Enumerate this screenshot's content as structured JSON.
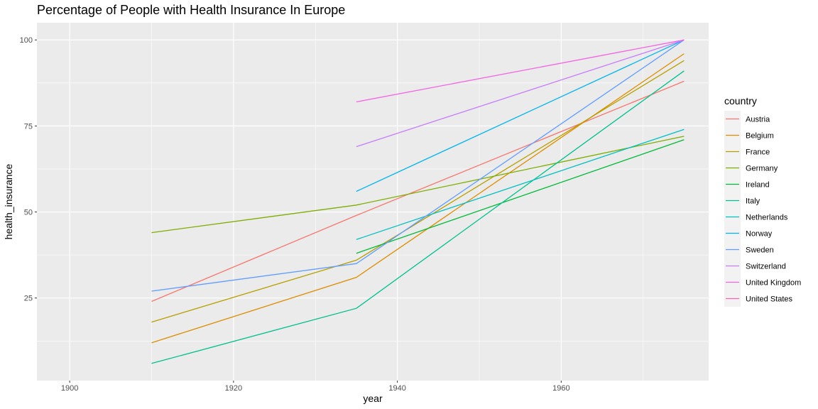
{
  "chart_data": {
    "type": "line",
    "title": "Percentage of People with Health Insurance In Europe",
    "xlabel": "year",
    "ylabel": "health_insurance",
    "xlim": [
      1896,
      1978
    ],
    "ylim": [
      1,
      105
    ],
    "x_ticks": [
      1900,
      1920,
      1940,
      1960
    ],
    "y_ticks": [
      25,
      50,
      75,
      100
    ],
    "grid": true,
    "legend": {
      "title": "country",
      "position": "right"
    },
    "series": [
      {
        "name": "Austria",
        "color": "#F8766D",
        "x": [
          1910,
          1935,
          1975
        ],
        "y": [
          24,
          49,
          88
        ]
      },
      {
        "name": "Belgium",
        "color": "#DE8C00",
        "x": [
          1910,
          1935,
          1975
        ],
        "y": [
          12,
          31,
          96
        ]
      },
      {
        "name": "France",
        "color": "#B79F00",
        "x": [
          1910,
          1935,
          1975
        ],
        "y": [
          18,
          36,
          94
        ]
      },
      {
        "name": "Germany",
        "color": "#7CAE00",
        "x": [
          1910,
          1935,
          1975
        ],
        "y": [
          44,
          52,
          72
        ]
      },
      {
        "name": "Ireland",
        "color": "#00BA38",
        "x": [
          1935,
          1975
        ],
        "y": [
          38,
          71
        ]
      },
      {
        "name": "Italy",
        "color": "#00C08B",
        "x": [
          1910,
          1935,
          1975
        ],
        "y": [
          6,
          22,
          91
        ]
      },
      {
        "name": "Netherlands",
        "color": "#00BFC4",
        "x": [
          1935,
          1975
        ],
        "y": [
          42,
          74
        ]
      },
      {
        "name": "Norway",
        "color": "#00B4F0",
        "x": [
          1935,
          1975
        ],
        "y": [
          56,
          100
        ]
      },
      {
        "name": "Sweden",
        "color": "#619CFF",
        "x": [
          1910,
          1935,
          1975
        ],
        "y": [
          27,
          35,
          100
        ]
      },
      {
        "name": "Switzerland",
        "color": "#C77CFF",
        "x": [
          1935,
          1975
        ],
        "y": [
          69,
          100
        ]
      },
      {
        "name": "United Kingdom",
        "color": "#F564E3",
        "x": [
          1935,
          1975
        ],
        "y": [
          82,
          100
        ]
      },
      {
        "name": "United States",
        "color": "#FF64B0",
        "x": [],
        "y": []
      }
    ]
  }
}
